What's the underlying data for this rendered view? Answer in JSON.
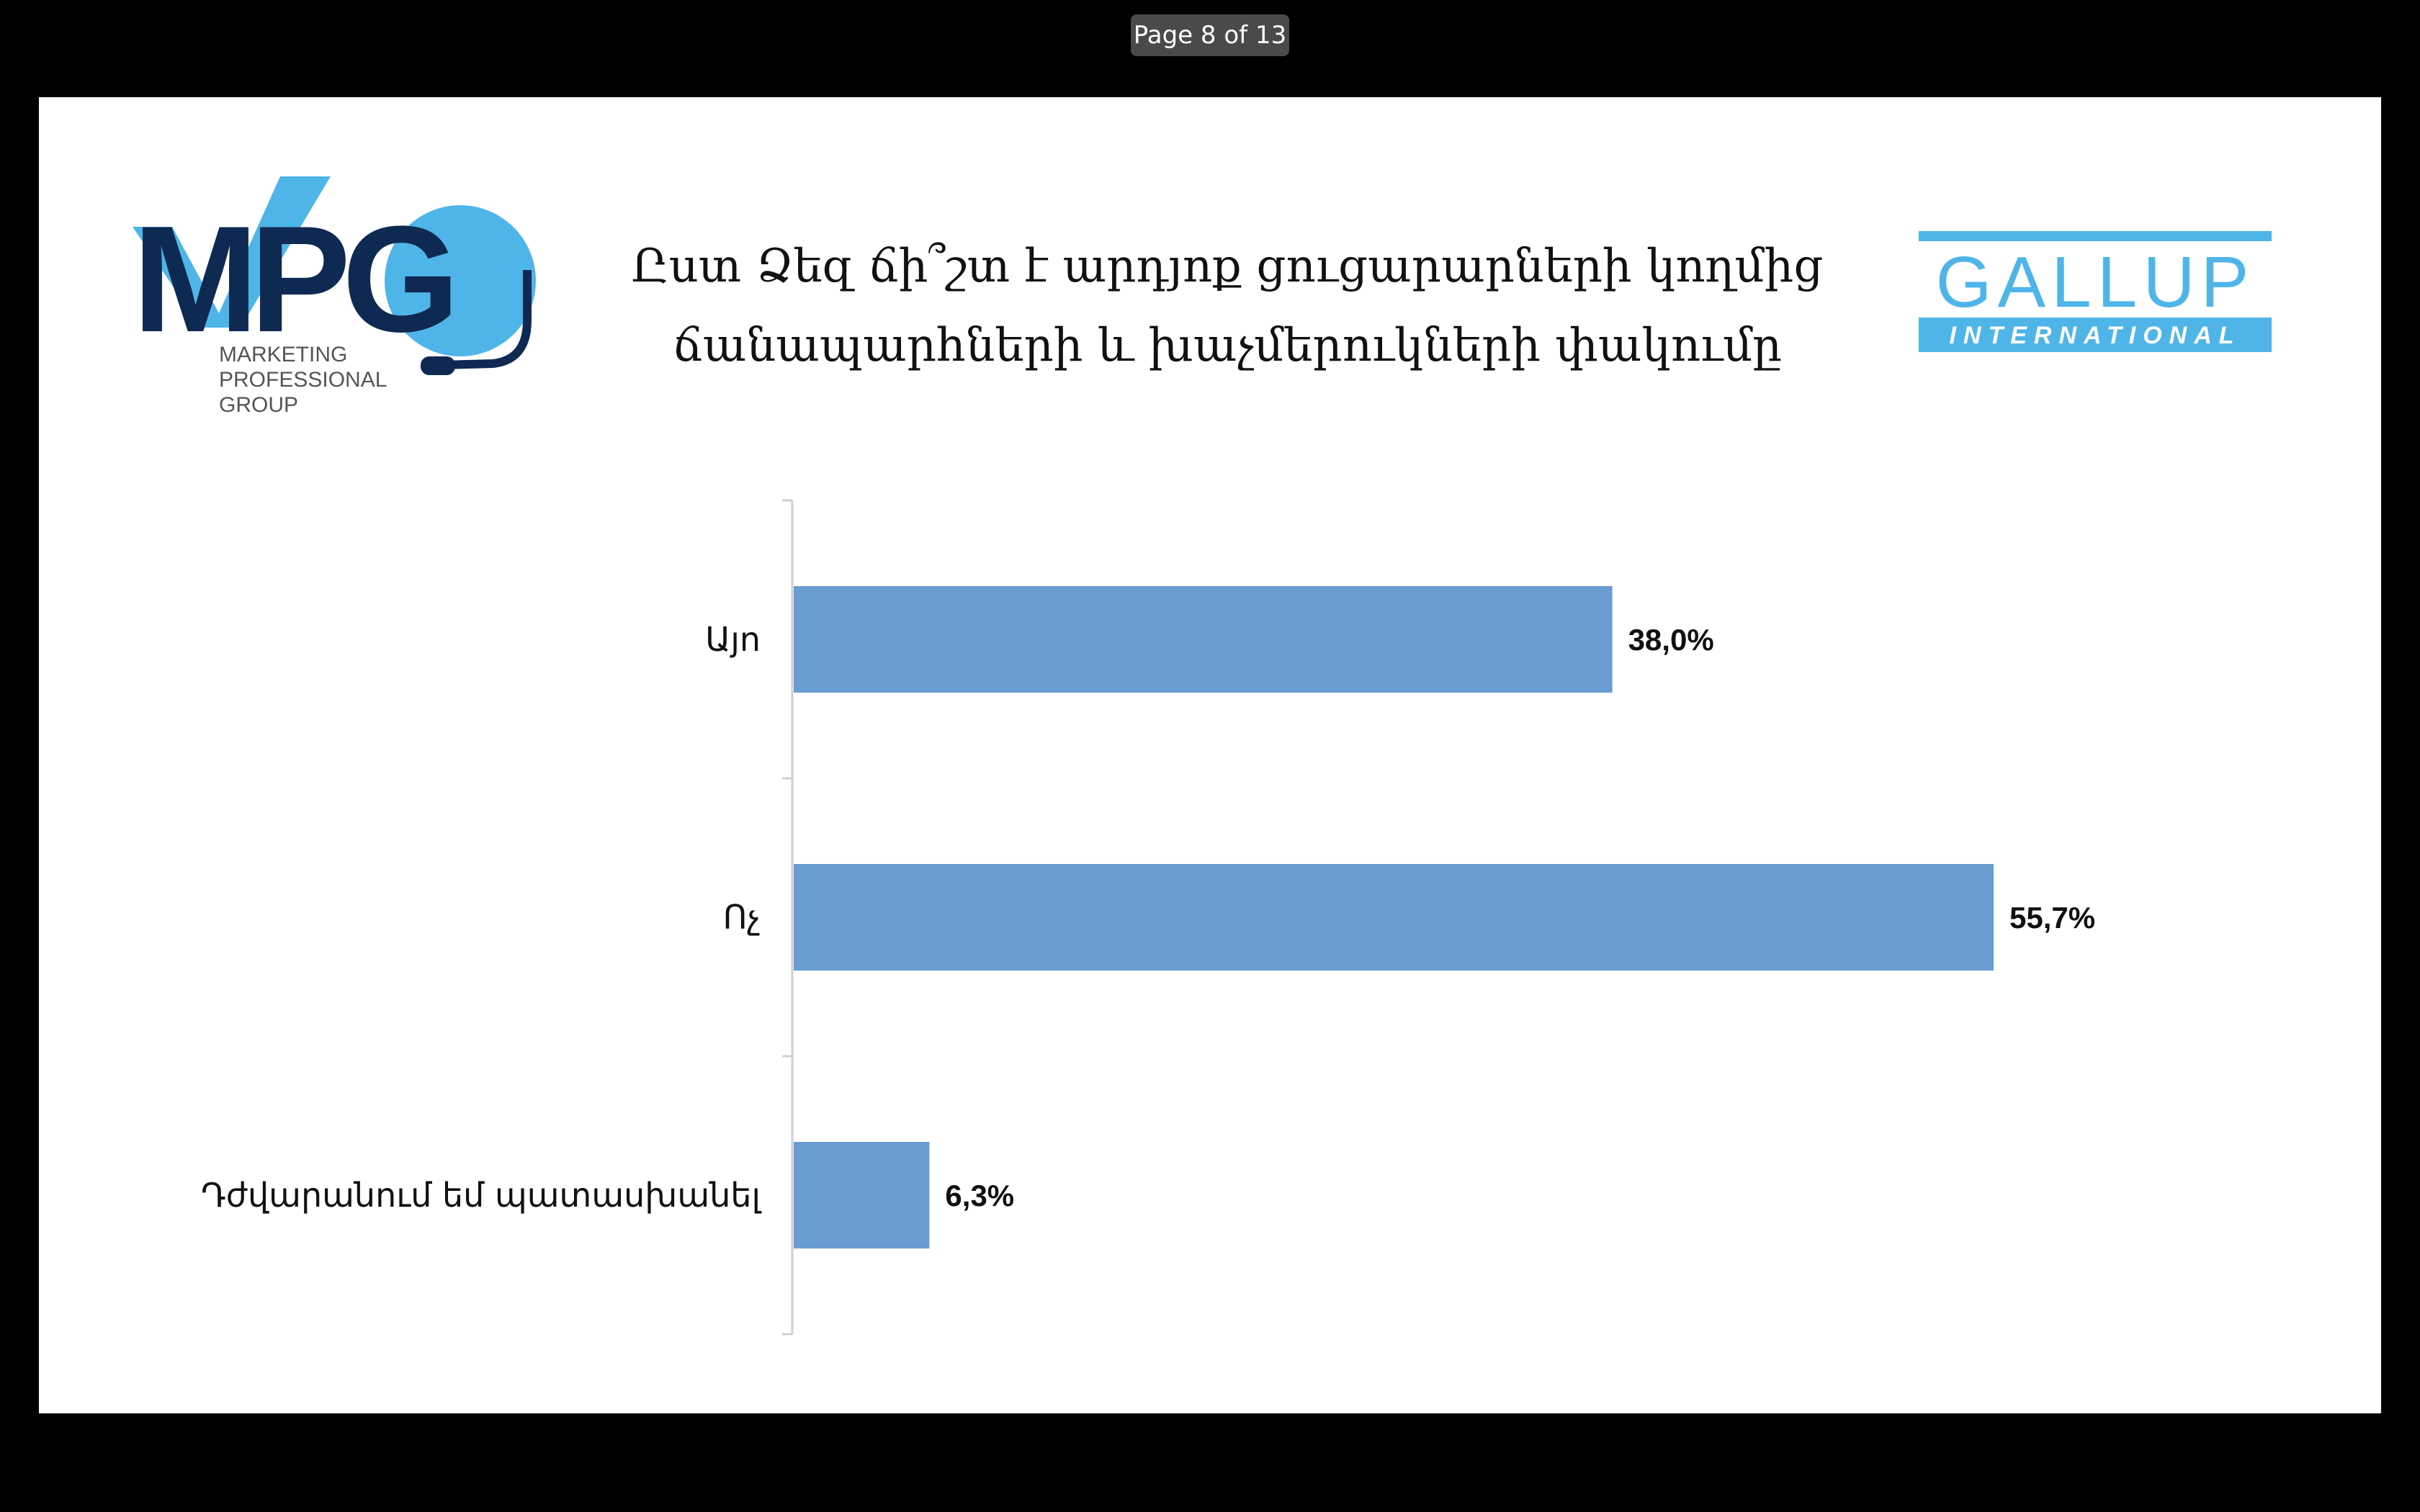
{
  "viewer": {
    "page_indicator": "Page 8 of 13"
  },
  "slide": {
    "title_lines": [
      "Ըստ Ձեզ ճի՞շտ է արդյոք ցուցարարների կողմից",
      "ճանապարհների և խաչմերուկների փակումը"
    ],
    "logos": {
      "mpg": {
        "letters": "MPG",
        "lines": [
          "MARKETING",
          "PROFESSIONAL",
          "GROUP"
        ]
      },
      "gallup": {
        "word": "GALLUP",
        "sub": "INTERNATIONAL"
      }
    }
  },
  "colors": {
    "bar": "#699dd1",
    "mpg_dark": "#0f2a52",
    "mpg_light": "#4fb5e8",
    "gallup": "#4fb5e8"
  },
  "chart_data": {
    "type": "bar",
    "orientation": "horizontal",
    "categories": [
      "Այո",
      "Ոչ",
      "Դժվարանում եմ պատասխանել"
    ],
    "values": [
      38.0,
      55.7,
      6.3
    ],
    "value_labels": [
      "38,0%",
      "55,7%",
      "6,3%"
    ],
    "xlim": [
      0,
      60
    ],
    "grid": false,
    "legend": "none"
  }
}
